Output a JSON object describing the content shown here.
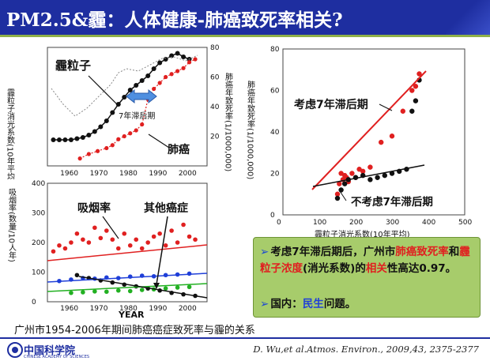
{
  "title": "PM2.5&霾：人体健康-肺癌致死率相关?",
  "caption": "广州市1954-2006年期间肺癌癌症致死率与霾的关系",
  "logo": {
    "name": "中国科学院",
    "sub": "CHINESE ACADEMY OF SCIENCES"
  },
  "citation": "D. Wu,et al.Atmos. Environ., 2009,43, 2375-2377",
  "bullets": {
    "b1_parts": [
      "考虑7年滞后期后，广州市",
      "肺癌致死率",
      "和",
      "霾粒子浓度",
      "(消光系数)的",
      "相关",
      "性高达0.97。"
    ],
    "b2_parts": [
      "国内：",
      "民生",
      "问题。"
    ]
  },
  "chart_data": [
    {
      "type": "line",
      "name": "top-left",
      "title": "",
      "xlabel": "",
      "xlim": [
        1953,
        2007
      ],
      "x_ticks": [
        1960,
        1970,
        1980,
        1990,
        2000
      ],
      "y_left_label": "霾粒子消光系数(10年平均)",
      "y_right_label": "肺癌年致死率(1/1000,000)",
      "y_right_lim": [
        0,
        80
      ],
      "y_right_ticks": [
        20,
        40,
        60,
        80
      ],
      "annotations": [
        "霾粒子",
        "7年滞后期",
        "肺癌"
      ],
      "series": [
        {
          "name": "霾粒子",
          "axis": "left",
          "x": [
            1955,
            1957,
            1959,
            1961,
            1963,
            1965,
            1967,
            1969,
            1971,
            1973,
            1975,
            1977,
            1979,
            1981,
            1983,
            1985,
            1987,
            1989,
            1991,
            1993,
            1995,
            1997,
            1999,
            2001
          ],
          "y": [
            0.22,
            0.22,
            0.22,
            0.22,
            0.23,
            0.24,
            0.26,
            0.29,
            0.33,
            0.38,
            0.45,
            0.52,
            0.58,
            0.64,
            0.68,
            0.72,
            0.76,
            0.82,
            0.87,
            0.9,
            0.93,
            0.95,
            0.92,
            0.9
          ]
        },
        {
          "name": "肺癌",
          "axis": "right",
          "x": [
            1964,
            1967,
            1970,
            1973,
            1975,
            1977,
            1979,
            1981,
            1983,
            1985,
            1987,
            1989,
            1991,
            1993,
            1995,
            1997,
            1999,
            2001,
            2003
          ],
          "y": [
            5,
            8,
            10,
            12,
            14,
            18,
            20,
            22,
            24,
            28,
            45,
            52,
            56,
            60,
            62,
            64,
            66,
            70,
            72
          ]
        }
      ]
    },
    {
      "type": "scatter",
      "name": "bottom-left",
      "xlabel": "YEAR",
      "ylabel": "吸烟率(数量/10人年)",
      "xlim": [
        1953,
        2007
      ],
      "ylim": [
        0,
        400
      ],
      "x_ticks": [
        1960,
        1970,
        1980,
        1990,
        2000
      ],
      "y_ticks": [
        0,
        100,
        200,
        300,
        400
      ],
      "annotations": [
        "吸烟率",
        "其他癌症"
      ],
      "series": [
        {
          "name": "吸烟率",
          "color": "#e02020",
          "x": [
            1955,
            1957,
            1959,
            1961,
            1963,
            1965,
            1967,
            1969,
            1971,
            1973,
            1975,
            1977,
            1979,
            1981,
            1983,
            1985,
            1987,
            1989,
            1991,
            1993,
            1995,
            1997,
            1999,
            2001,
            2003
          ],
          "y": [
            170,
            190,
            180,
            200,
            230,
            210,
            200,
            250,
            215,
            240,
            210,
            180,
            230,
            190,
            210,
            180,
            200,
            220,
            230,
            190,
            240,
            200,
            260,
            220,
            210
          ]
        },
        {
          "name": "",
          "color": "#1f3fd8",
          "x": [
            1957,
            1961,
            1965,
            1969,
            1973,
            1977,
            1981,
            1985,
            1989,
            1993,
            1997,
            2001
          ],
          "y": [
            70,
            75,
            80,
            78,
            82,
            80,
            85,
            88,
            86,
            90,
            92,
            95
          ]
        },
        {
          "name": "",
          "color": "#22b022",
          "x": [
            1961,
            1965,
            1969,
            1973,
            1977,
            1981,
            1985,
            1989,
            1993,
            1997,
            2001
          ],
          "y": [
            30,
            32,
            35,
            34,
            38,
            36,
            40,
            42,
            45,
            48,
            50
          ]
        },
        {
          "name": "其他癌症",
          "color": "#111111",
          "x": [
            1963,
            1967,
            1971,
            1975,
            1979,
            1983,
            1987,
            1991,
            1995,
            1999,
            2003
          ],
          "y": [
            90,
            80,
            72,
            65,
            58,
            52,
            45,
            38,
            30,
            25,
            20
          ]
        }
      ]
    },
    {
      "type": "scatter",
      "name": "right",
      "xlabel": "霾粒子消光系数(10年平均)",
      "ylabel": "肺癌年致死率(1/1000,000)",
      "xlim": [
        0,
        500
      ],
      "ylim": [
        0,
        80
      ],
      "x_ticks": [
        0,
        100,
        200,
        300,
        400,
        500
      ],
      "y_ticks": [
        0,
        20,
        40,
        60,
        80
      ],
      "annotations": [
        "考虑7年滞后期",
        "不考虑7年滞后期"
      ],
      "series": [
        {
          "name": "考虑7年滞后期",
          "color": "#e02020",
          "x": [
            150,
            155,
            160,
            165,
            170,
            175,
            180,
            190,
            200,
            210,
            220,
            240,
            270,
            300,
            330,
            355,
            365,
            375
          ],
          "y": [
            10,
            15,
            20,
            17,
            19,
            18,
            16,
            20,
            18,
            22,
            21,
            23,
            35,
            38,
            50,
            60,
            62,
            68
          ]
        },
        {
          "name": "不考虑7年滞后期",
          "color": "#111111",
          "x": [
            150,
            160,
            170,
            180,
            200,
            220,
            240,
            260,
            280,
            300,
            320,
            340,
            355,
            365,
            375
          ],
          "y": [
            8,
            12,
            15,
            17,
            18,
            19,
            17,
            18,
            19,
            20,
            21,
            22,
            50,
            55,
            65
          ]
        }
      ]
    }
  ]
}
